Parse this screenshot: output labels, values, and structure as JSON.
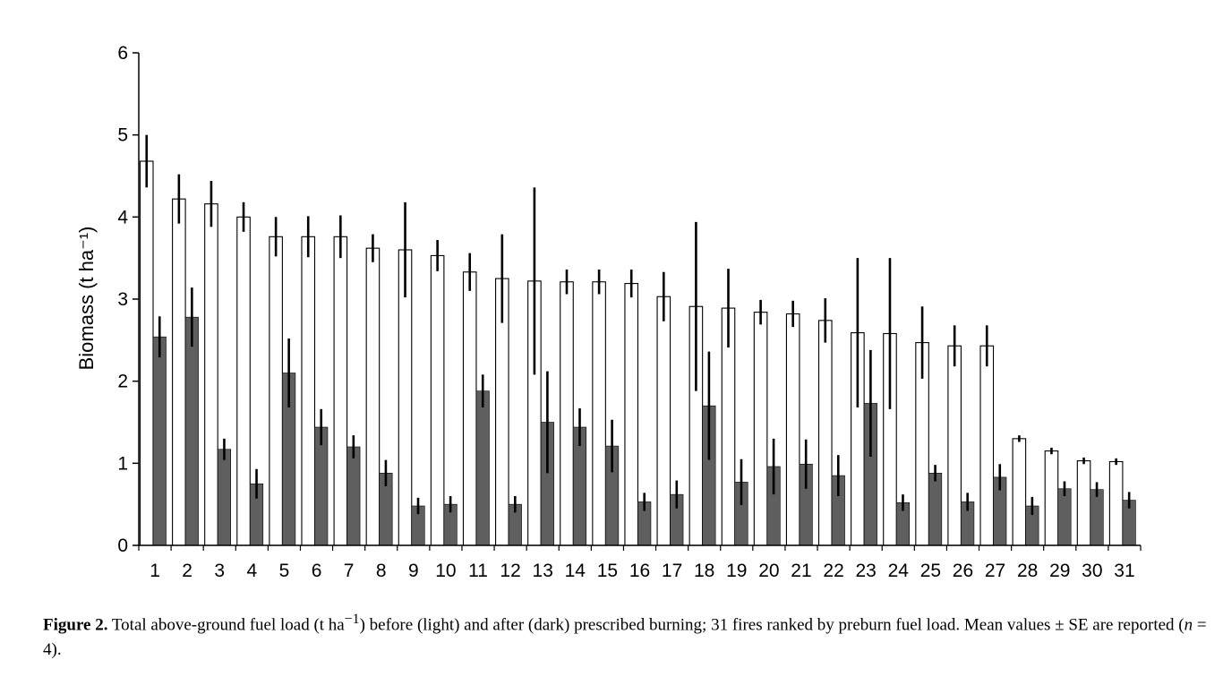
{
  "chart_data": {
    "type": "bar",
    "ylabel": "Biomass (t ha⁻¹)",
    "ylim": [
      0,
      6
    ],
    "yticks": [
      "0",
      "1",
      "2",
      "3",
      "4",
      "5",
      "6"
    ],
    "categories": [
      "1",
      "2",
      "3",
      "4",
      "5",
      "6",
      "7",
      "8",
      "9",
      "10",
      "11",
      "12",
      "13",
      "14",
      "15",
      "16",
      "17",
      "18",
      "19",
      "20",
      "21",
      "22",
      "23",
      "24",
      "25",
      "26",
      "27",
      "28",
      "29",
      "30",
      "31"
    ],
    "series": [
      {
        "color": "#ffffff",
        "values": [
          4.68,
          4.22,
          4.16,
          4.0,
          3.76,
          3.76,
          3.76,
          3.62,
          3.6,
          3.53,
          3.33,
          3.25,
          3.22,
          3.21,
          3.21,
          3.19,
          3.03,
          2.91,
          2.89,
          2.84,
          2.82,
          2.74,
          2.59,
          2.58,
          2.47,
          2.43,
          2.43,
          1.3,
          1.15,
          1.03,
          1.02
        ],
        "errors": [
          0.32,
          0.3,
          0.28,
          0.18,
          0.24,
          0.25,
          0.26,
          0.17,
          0.58,
          0.19,
          0.23,
          0.54,
          1.14,
          0.15,
          0.15,
          0.17,
          0.3,
          1.03,
          0.48,
          0.15,
          0.16,
          0.27,
          0.91,
          0.92,
          0.44,
          0.25,
          0.25,
          0.04,
          0.04,
          0.04,
          0.04
        ]
      },
      {
        "color": "#5f5f5f",
        "values": [
          2.54,
          2.78,
          1.17,
          0.75,
          2.1,
          1.44,
          1.2,
          0.88,
          0.48,
          0.5,
          1.88,
          0.5,
          1.5,
          1.44,
          1.21,
          0.53,
          0.62,
          1.7,
          0.77,
          0.96,
          0.99,
          0.85,
          1.73,
          0.52,
          0.88,
          0.53,
          0.83,
          0.48,
          0.69,
          0.68,
          0.55
        ],
        "errors": [
          0.25,
          0.36,
          0.13,
          0.18,
          0.42,
          0.22,
          0.14,
          0.16,
          0.1,
          0.1,
          0.2,
          0.1,
          0.62,
          0.23,
          0.32,
          0.11,
          0.17,
          0.66,
          0.28,
          0.34,
          0.3,
          0.25,
          0.65,
          0.1,
          0.1,
          0.11,
          0.16,
          0.11,
          0.09,
          0.09,
          0.1
        ]
      }
    ],
    "grid": false,
    "error_bars": true
  },
  "caption": {
    "label": "Figure 2.",
    "text1": "Total above-ground fuel load (t ha",
    "sup": "−1",
    "text2": ") before (light) and after (dark) prescribed burning; 31 fires ranked by preburn fuel load. Mean values ± SE are reported (",
    "n": "n",
    "text3": " = 4)."
  }
}
